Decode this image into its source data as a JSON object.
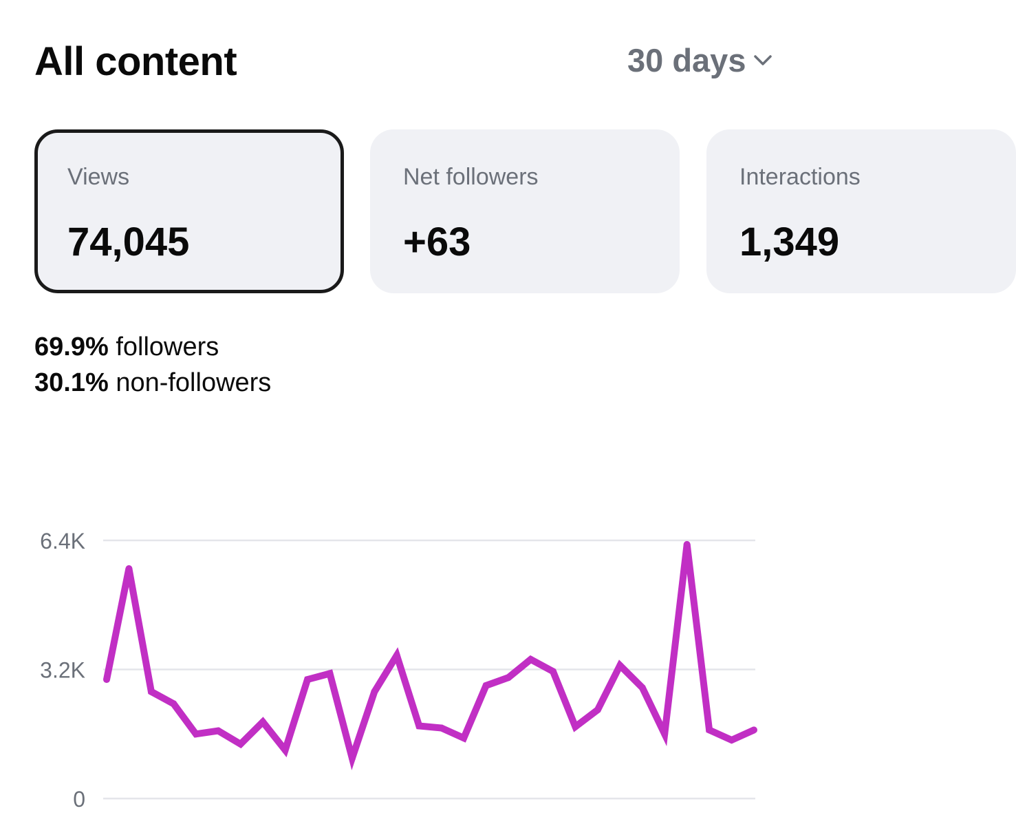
{
  "header": {
    "title": "All content",
    "range_label": "30 days"
  },
  "cards": [
    {
      "label": "Views",
      "value": "74,045",
      "selected": true
    },
    {
      "label": "Net followers",
      "value": "+63",
      "selected": false
    },
    {
      "label": "Interactions",
      "value": "1,349",
      "selected": false
    }
  ],
  "breakdown": [
    {
      "percent": "69.9%",
      "label": "followers"
    },
    {
      "percent": "30.1%",
      "label": "non-followers"
    }
  ],
  "colors": {
    "line": "#c12fc4",
    "grid": "#e4e5ea",
    "card_bg": "#f0f1f5",
    "muted_text": "#6b7079"
  },
  "chart_data": {
    "type": "line",
    "ylim": [
      0,
      6400
    ],
    "ytick_labels": [
      "0",
      "3.2K",
      "6.4K"
    ],
    "ytick_values": [
      0,
      3200,
      6400
    ],
    "grid": true,
    "x": [
      1,
      2,
      3,
      4,
      5,
      6,
      7,
      8,
      9,
      10,
      11,
      12,
      13,
      14,
      15,
      16,
      17,
      18,
      19,
      20,
      21,
      22,
      23,
      24,
      25,
      26,
      27,
      28,
      29,
      30
    ],
    "values": [
      2950,
      5700,
      2650,
      2350,
      1600,
      1680,
      1350,
      1900,
      1200,
      2950,
      3100,
      1000,
      2650,
      3550,
      1800,
      1750,
      1500,
      2800,
      3000,
      3450,
      3150,
      1780,
      2200,
      3300,
      2750,
      1600,
      6300,
      1700,
      1450,
      1700
    ]
  }
}
